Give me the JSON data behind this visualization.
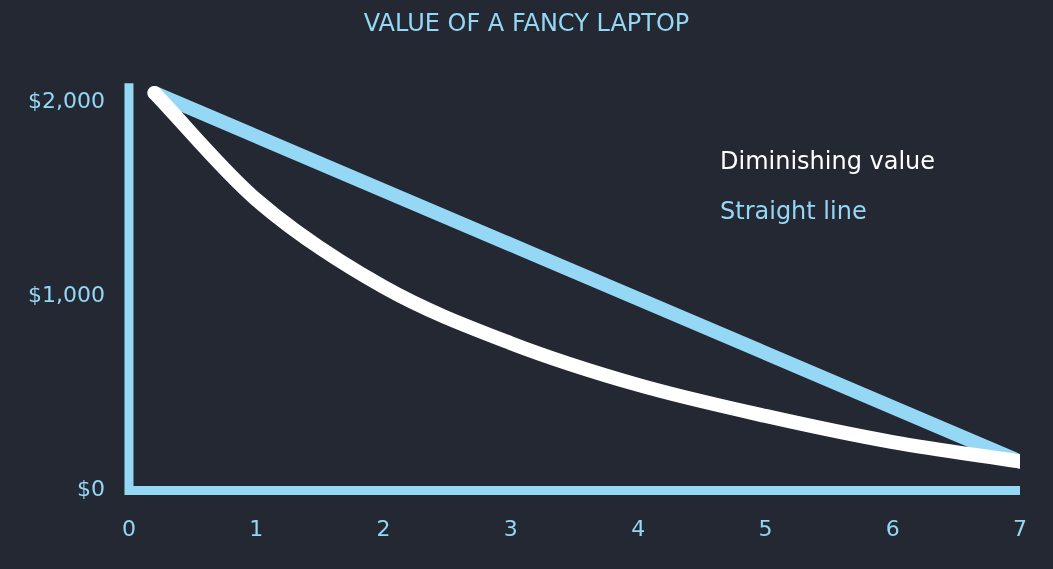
{
  "chart_data": {
    "type": "line",
    "title": "VALUE OF A FANCY LAPTOP",
    "xlim": [
      0,
      7
    ],
    "xticks": [
      0,
      1,
      2,
      3,
      4,
      5,
      6,
      7
    ],
    "ylim": [
      0,
      2100
    ],
    "yticks": [
      {
        "value": 0,
        "label": "$0"
      },
      {
        "value": 1000,
        "label": "$1,000"
      },
      {
        "value": 2000,
        "label": "$2,000"
      }
    ],
    "grid": false,
    "legend": "top right",
    "marker": "none",
    "line_style": "solid",
    "series": [
      {
        "name": "Diminishing value",
        "color": "#ffffff",
        "x": [
          0.2,
          1,
          2,
          3,
          4,
          5,
          6,
          7
        ],
        "values": [
          2050,
          1500,
          1050,
          760,
          545,
          385,
          250,
          150
        ]
      },
      {
        "name": "Straight line",
        "color": "#94d8f6",
        "x": [
          0.2,
          7
        ],
        "values": [
          2050,
          150
        ]
      }
    ]
  }
}
